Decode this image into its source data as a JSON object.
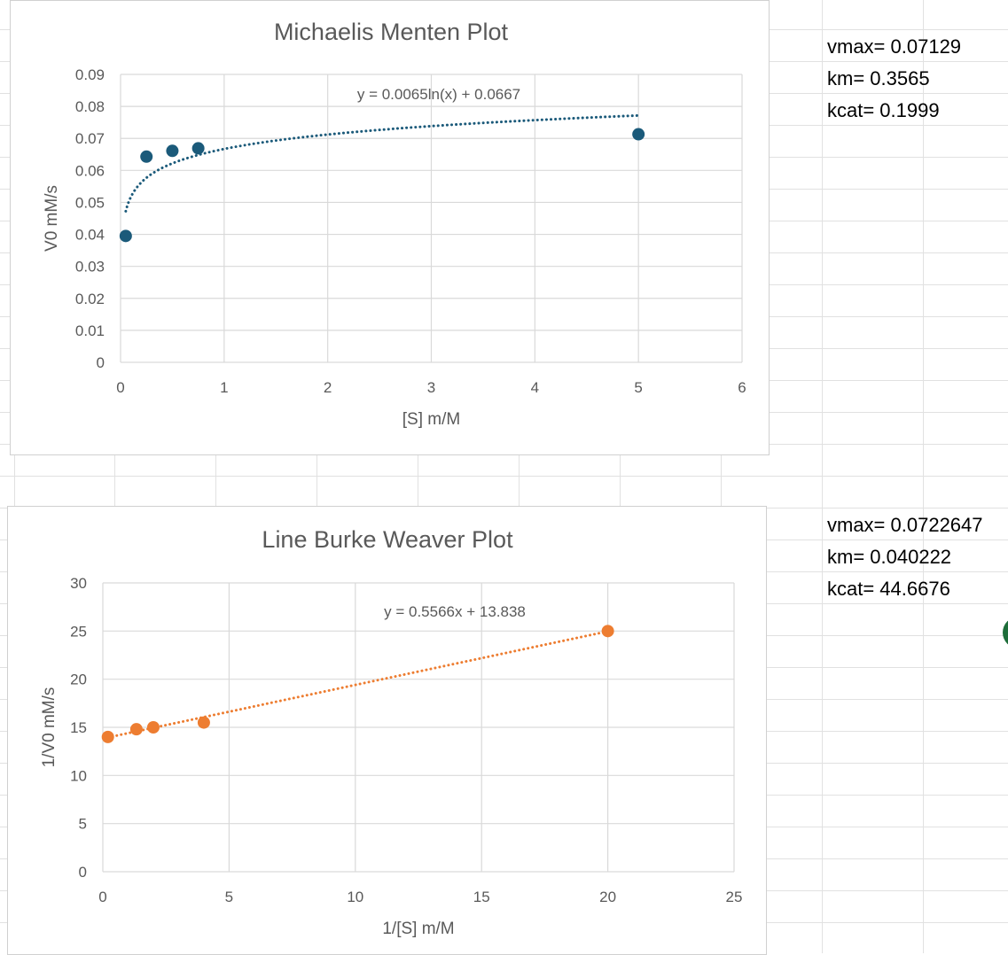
{
  "cells": {
    "top": {
      "vmax": "vmax= 0.07129",
      "km": "km= 0.3565",
      "kcat": "kcat= 0.1999"
    },
    "bottom": {
      "vmax": "vmax= 0.0722647",
      "km": "km= 0.040222",
      "kcat": "kcat= 44.6676"
    }
  },
  "colors": {
    "grid": "#d9d9d9",
    "sheet_grid": "#e1e1e1",
    "text": "#595959",
    "series_mm": "#1b5a7a",
    "series_lb": "#ed7d31",
    "accent_circle": "#1e6e3a"
  },
  "chart_data": [
    {
      "type": "scatter",
      "title": "Michaelis Menten Plot",
      "xlabel": "[S] m/M",
      "ylabel": "V0 mM/s",
      "xlim": [
        0,
        6
      ],
      "ylim": [
        0,
        0.09
      ],
      "x_ticks": [
        "0",
        "1",
        "2",
        "3",
        "4",
        "5",
        "6"
      ],
      "y_ticks": [
        "0",
        "0.01",
        "0.02",
        "0.03",
        "0.04",
        "0.05",
        "0.06",
        "0.07",
        "0.08",
        "0.09"
      ],
      "grid": true,
      "series": [
        {
          "x": [
            0.05,
            0.25,
            0.5,
            0.75,
            5
          ],
          "y": [
            0.0395,
            0.0643,
            0.0661,
            0.0669,
            0.0713
          ],
          "color": "#1b5a7a"
        }
      ],
      "trendline": {
        "kind": "log",
        "a": 0.0065,
        "b": 0.0667,
        "x_range": [
          0.05,
          5
        ],
        "label": "y = 0.0065ln(x) + 0.0667"
      }
    },
    {
      "type": "scatter",
      "title": "Line Burke Weaver Plot",
      "xlabel": "1/[S] m/M",
      "ylabel": "1/V0 mM/s",
      "xlim": [
        0,
        25
      ],
      "ylim": [
        0,
        30
      ],
      "x_ticks": [
        "0",
        "5",
        "10",
        "15",
        "20",
        "25"
      ],
      "y_ticks": [
        "0",
        "5",
        "10",
        "15",
        "20",
        "25",
        "30"
      ],
      "grid": true,
      "series": [
        {
          "x": [
            0.2,
            1.33,
            2,
            4,
            20
          ],
          "y": [
            14.0,
            14.8,
            15.0,
            15.5,
            25.0
          ],
          "color": "#ed7d31"
        }
      ],
      "trendline": {
        "kind": "linear",
        "a": 0.5566,
        "b": 13.838,
        "x_range": [
          0.2,
          20
        ],
        "label": "y = 0.5566x + 13.838"
      }
    }
  ]
}
